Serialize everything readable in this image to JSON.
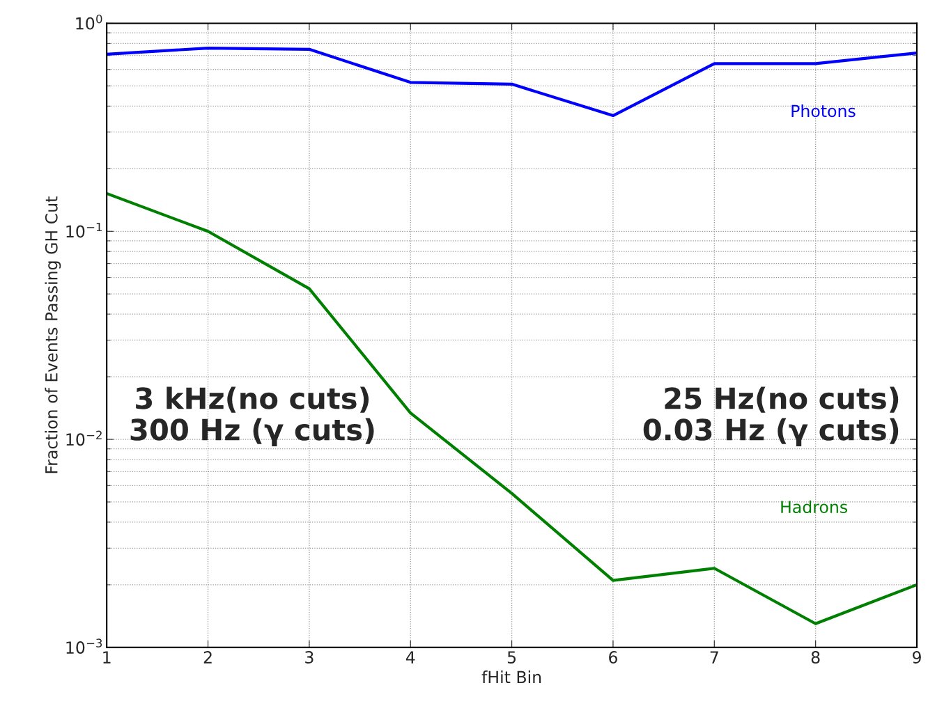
{
  "chart_data": {
    "type": "line",
    "xlabel": "fHit Bin",
    "ylabel": "Fraction of Events Passing GH Cut",
    "x": [
      1,
      2,
      3,
      4,
      5,
      6,
      7,
      8,
      9
    ],
    "series": [
      {
        "name": "Photons",
        "color": "#0000ff",
        "values": [
          0.71,
          0.76,
          0.75,
          0.52,
          0.51,
          0.36,
          0.64,
          0.64,
          0.72
        ]
      },
      {
        "name": "Hadrons",
        "color": "#008000",
        "values": [
          0.152,
          0.1,
          0.053,
          0.0134,
          0.0055,
          0.0021,
          0.0024,
          0.0013,
          0.002
        ]
      }
    ],
    "log": "y",
    "xlim": [
      1,
      9
    ],
    "xticks": [
      1,
      2,
      3,
      4,
      5,
      6,
      7,
      8,
      9
    ],
    "ylim": [
      0.001,
      1
    ],
    "yticks": [
      {
        "value": 0.001,
        "label": "10$^{−3}$"
      },
      {
        "value": 0.01,
        "label": "10$^{−2}$"
      },
      {
        "value": 0.1,
        "label": "10$^{−1}$"
      },
      {
        "value": 1,
        "label": "10$^{0}$"
      }
    ],
    "grid": true,
    "legend": false,
    "line_style": "solid",
    "marker": "none",
    "annotations": [
      "3 kHz(no cuts)\n300 Hz (γ cuts)",
      "25 Hz(no cuts)\n0.03 Hz (γ cuts)"
    ]
  }
}
